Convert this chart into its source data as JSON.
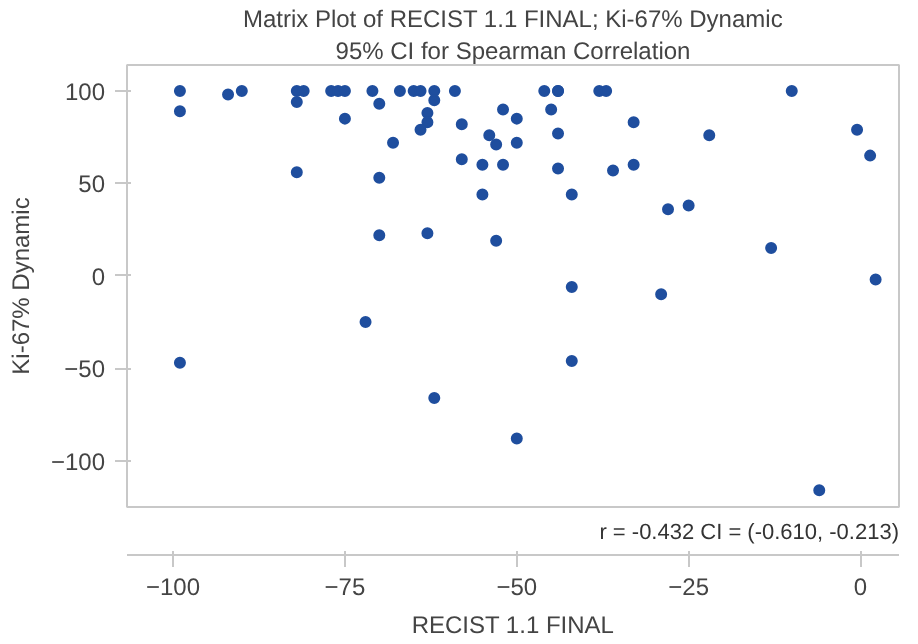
{
  "chart_data": {
    "type": "scatter",
    "title": "Matrix Plot of RECIST 1.1 FINAL; Ki-67% Dynamic",
    "subtitle": "95% CI for Spearman Correlation",
    "xlabel": "RECIST 1.1 FINAL",
    "ylabel": "Ki-67% Dynamic",
    "annotations": [
      "r = -0.432 CI = (-0.610, -0.213)"
    ],
    "x": [
      -99,
      -99,
      -92,
      -90,
      -82,
      -82,
      -81,
      -82,
      -77,
      -76,
      -75,
      -75,
      -71,
      -70,
      -70,
      -67,
      -68,
      -70,
      -65,
      -64,
      -62,
      -62,
      -63,
      -63,
      -64,
      -63,
      -59,
      -58,
      -58,
      -54,
      -53,
      -55,
      -52,
      -52,
      -55,
      -53,
      -50,
      -50,
      -46,
      -44,
      -44,
      -45,
      -44,
      -44,
      -42,
      -42,
      -38,
      -37,
      -36,
      -33,
      -33,
      -29,
      -28,
      -25,
      -22,
      -13,
      -10,
      -0.5,
      1.4,
      2.2,
      -99,
      -72,
      -62,
      -50,
      -42,
      -6
    ],
    "series": [
      {
        "color": "#1f4e9e",
        "values": [
          100,
          89,
          98,
          100,
          94,
          100,
          100,
          56,
          100,
          100,
          100,
          85,
          100,
          93,
          53,
          100,
          72,
          22,
          100,
          100,
          100,
          95,
          88,
          83,
          79,
          23,
          100,
          82,
          63,
          76,
          71,
          60,
          60,
          90,
          44,
          19,
          85,
          72,
          100,
          100,
          100,
          90,
          77,
          58,
          44,
          -6,
          100,
          100,
          57,
          83,
          60,
          -10,
          36,
          38,
          76,
          15,
          100,
          79,
          65,
          -2,
          -47,
          -25,
          -66,
          -88,
          -46,
          -116
        ]
      }
    ],
    "xlim": [
      -106.7,
      5.6
    ],
    "ylim": [
      -125,
      114
    ],
    "xticks": [
      -100,
      -75,
      -50,
      -25,
      0
    ],
    "yticks": [
      -100,
      -50,
      0,
      50,
      100
    ],
    "grid": false,
    "marker": "circle"
  }
}
